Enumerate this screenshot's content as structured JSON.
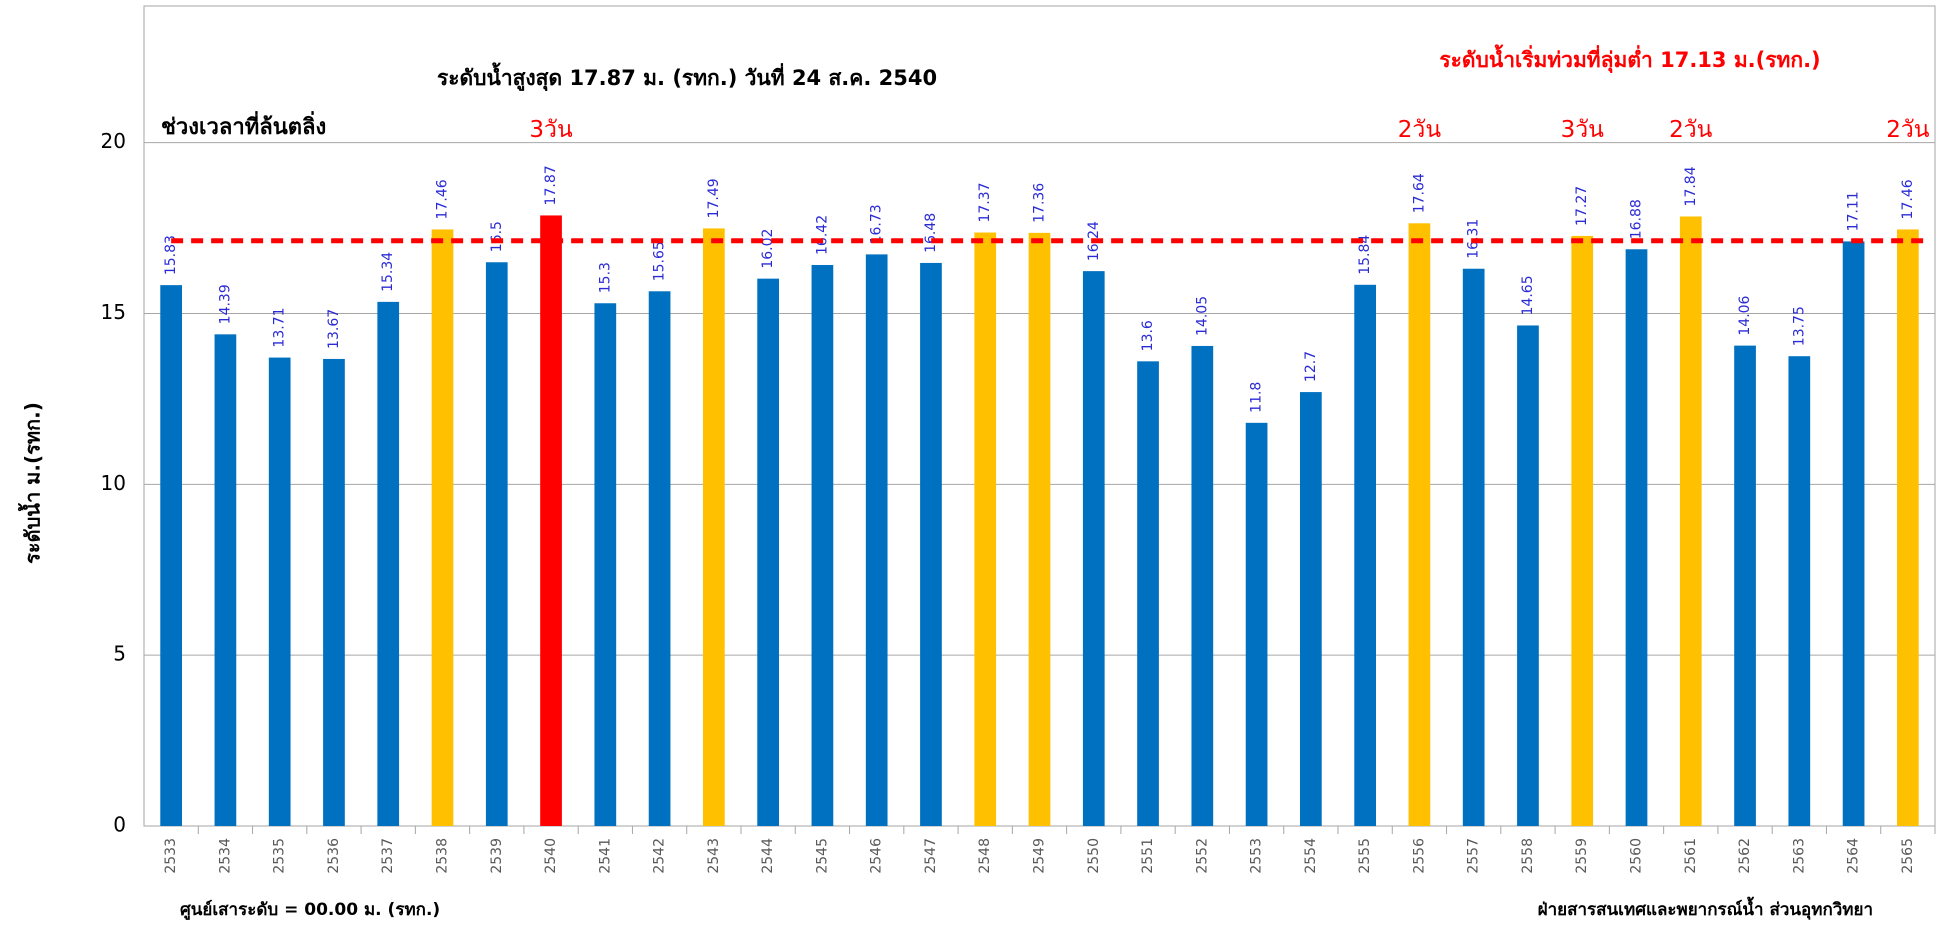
{
  "chart_data": {
    "type": "bar",
    "title": "ระดับน้ำสูงสุด 17.87 ม. (รทก.) วันที่ 24 ส.ค. 2540",
    "subtitle": "ระดับน้ำเริ่มท่วมที่ลุ่มต่ำ 17.13 ม.(รทก.)",
    "overflow_label": "ช่วงเวลาที่ล้นตลิ่ง",
    "y_label": "ระดับน้ำ ม.(รทก.)",
    "footnote_left": "ศูนย์เสาระดับ = 00.00 ม. (รทก.)",
    "footnote_right": "ฝ่ายสารสนเทศและพยากรณ์น้ำ ส่วนอุทกวิทยา",
    "categories": [
      "2533",
      "2534",
      "2535",
      "2536",
      "2537",
      "2538",
      "2539",
      "2540",
      "2541",
      "2542",
      "2543",
      "2544",
      "2545",
      "2546",
      "2547",
      "2548",
      "2549",
      "2550",
      "2551",
      "2552",
      "2553",
      "2554",
      "2555",
      "2556",
      "2557",
      "2558",
      "2559",
      "2560",
      "2561",
      "2562",
      "2563",
      "2564",
      "2565"
    ],
    "values": [
      15.83,
      14.39,
      13.71,
      13.67,
      15.34,
      17.46,
      16.5,
      17.87,
      15.3,
      15.65,
      17.49,
      16.02,
      16.42,
      16.73,
      16.48,
      17.37,
      17.36,
      16.24,
      13.6,
      14.05,
      11.8,
      12.7,
      15.84,
      17.64,
      16.31,
      14.65,
      17.27,
      16.88,
      17.84,
      14.06,
      13.75,
      17.11,
      17.46
    ],
    "colors": [
      "#0070c0",
      "#0070c0",
      "#0070c0",
      "#0070c0",
      "#0070c0",
      "#ffc000",
      "#0070c0",
      "#ff0000",
      "#0070c0",
      "#0070c0",
      "#ffc000",
      "#0070c0",
      "#0070c0",
      "#0070c0",
      "#0070c0",
      "#ffc000",
      "#ffc000",
      "#0070c0",
      "#0070c0",
      "#0070c0",
      "#0070c0",
      "#0070c0",
      "#0070c0",
      "#ffc000",
      "#0070c0",
      "#0070c0",
      "#ffc000",
      "#0070c0",
      "#ffc000",
      "#0070c0",
      "#0070c0",
      "#0070c0",
      "#ffc000"
    ],
    "threshold": 17.13,
    "threshold_color": "#ff0000",
    "annotations": [
      {
        "text": "3วัน",
        "category": "2540"
      },
      {
        "text": "2วัน",
        "category": "2556"
      },
      {
        "text": "3วัน",
        "category": "2559"
      },
      {
        "text": "2วัน",
        "category": "2561"
      },
      {
        "text": "2วัน",
        "category": "2565"
      }
    ],
    "ylim": [
      0,
      24
    ],
    "yticks": [
      0,
      5,
      10,
      15,
      20
    ],
    "grid": true
  }
}
